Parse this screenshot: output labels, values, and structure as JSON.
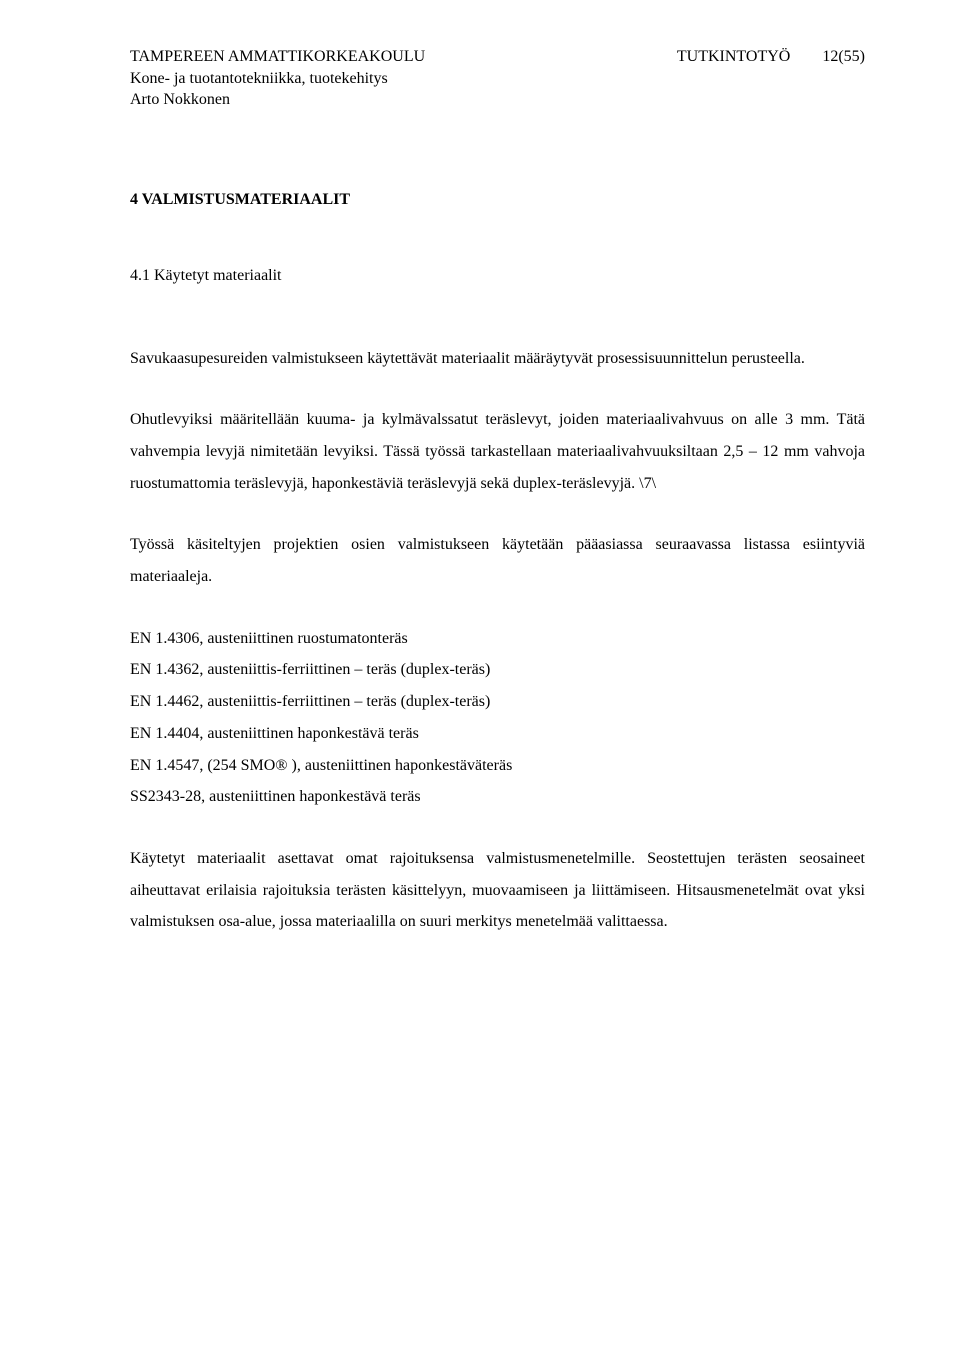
{
  "header": {
    "institution": "TAMPEREEN AMMATTIKORKEAKOULU",
    "department": "Kone- ja tuotantotekniikka, tuotekehitys",
    "author": "Arto Nokkonen",
    "doc_type": "TUTKINTOTYÖ",
    "page_of": "12(55)"
  },
  "section": {
    "number_title": "4 VALMISTUSMATERIAALIT",
    "subsection_title": "4.1 Käytetyt materiaalit"
  },
  "paragraphs": {
    "p1": "Savukaasupesureiden valmistukseen käytettävät materiaalit määräytyvät prosessisuunnittelun perusteella.",
    "p2": "Ohutlevyiksi määritellään kuuma- ja kylmävalssatut teräslevyt, joiden materiaalivahvuus on alle 3 mm. Tätä vahvempia levyjä nimitetään levyiksi. Tässä työssä tarkastellaan materiaalivahvuuksiltaan 2,5 – 12 mm vahvoja ruostumattomia teräslevyjä, haponkestäviä teräslevyjä sekä duplex-teräslevyjä. \\7\\",
    "p3": "Työssä käsiteltyjen projektien osien valmistukseen käytetään pääasiassa seuraavassa listassa esiintyviä materiaaleja.",
    "p4": "Käytetyt materiaalit asettavat omat rajoituksensa valmistusmenetelmille. Seostettujen terästen seosaineet aiheuttavat erilaisia rajoituksia terästen käsittelyyn, muovaamiseen ja liittämiseen. Hitsausmenetelmät ovat yksi valmistuksen osa-alue, jossa materiaalilla on suuri merkitys menetelmää valittaessa."
  },
  "materials": {
    "m1": "EN 1.4306, austeniittinen ruostumatonteräs",
    "m2": "EN 1.4362, austeniittis-ferriittinen – teräs (duplex-teräs)",
    "m3": "EN 1.4462, austeniittis-ferriittinen – teräs (duplex-teräs)",
    "m4": "EN 1.4404, austeniittinen haponkestävä teräs",
    "m5": "EN 1.4547, (254 SMO® ), austeniittinen haponkestäväteräs",
    "m6": "SS2343-28, austeniittinen haponkestävä teräs"
  }
}
